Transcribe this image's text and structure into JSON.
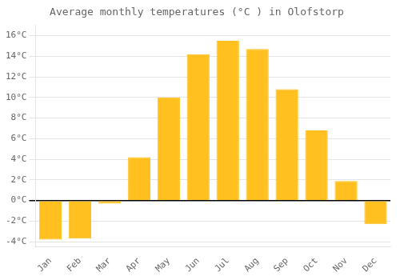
{
  "chart_data": {
    "type": "bar",
    "title": "Average monthly temperatures (°C ) in Olofstorp",
    "categories": [
      "Jan",
      "Feb",
      "Mar",
      "Apr",
      "May",
      "Jun",
      "Jul",
      "Aug",
      "Sep",
      "Oct",
      "Nov",
      "Dec"
    ],
    "values": [
      -3.8,
      -3.7,
      -0.3,
      4.2,
      10.0,
      14.2,
      15.5,
      14.7,
      10.8,
      6.8,
      1.9,
      -2.3
    ],
    "color": "#FFC020",
    "ylim": [
      -4.5,
      17.0
    ],
    "yticks": [
      {
        "value": -4,
        "label": "-4°C"
      },
      {
        "value": -2,
        "label": "-2°C"
      },
      {
        "value": 0,
        "label": "0°C"
      },
      {
        "value": 2,
        "label": "2°C"
      },
      {
        "value": 4,
        "label": "4°C"
      },
      {
        "value": 6,
        "label": "6°C"
      },
      {
        "value": 8,
        "label": "8°C"
      },
      {
        "value": 10,
        "label": "10°C"
      },
      {
        "value": 12,
        "label": "12°C"
      },
      {
        "value": 14,
        "label": "14°C"
      },
      {
        "value": 16,
        "label": "16°C"
      }
    ],
    "grid": true
  }
}
